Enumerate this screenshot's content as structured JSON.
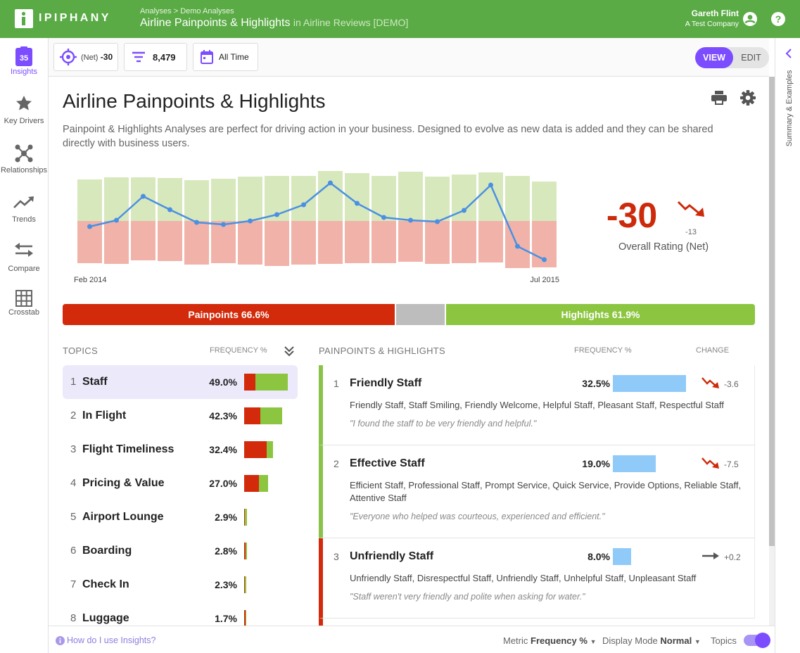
{
  "header": {
    "logo": "IPIPHANY",
    "breadcrumb": [
      "Analyses",
      "Demo Analyses"
    ],
    "separator": ">",
    "title": "Airline Painpoints & Highlights",
    "context": "in Airline Reviews [DEMO]",
    "user": "Gareth Flint",
    "company": "A Test Company"
  },
  "sidebar": {
    "badge": "35",
    "items": [
      "Insights",
      "Key Drivers",
      "Relationships",
      "Trends",
      "Compare",
      "Crosstab"
    ]
  },
  "toolbar": {
    "metric_prefix": "(Net)",
    "metric": "-30",
    "count": "8,479",
    "period": "All Time",
    "modes": [
      "VIEW",
      "EDIT"
    ]
  },
  "right_panel": "Summary & Examples",
  "analysis": {
    "title": "Airline Painpoints & Highlights",
    "description": "Painpoint & Highlights Analyses are perfect for driving action in your business. Designed to evolve as new data is added and they can be shared directly with business users.",
    "trend": {
      "type": "bar",
      "categories": [
        "Feb 2014",
        null,
        null,
        null,
        null,
        null,
        null,
        null,
        null,
        null,
        null,
        null,
        null,
        null,
        null,
        null,
        null,
        "Jul 2015"
      ],
      "ylim": [
        -70,
        75
      ],
      "highlights": {
        "color": "#d8e8bd",
        "values": [
          59,
          62,
          62,
          61,
          58,
          60,
          63,
          64,
          64,
          71,
          68,
          64,
          70,
          63,
          66,
          69,
          64,
          56
        ]
      },
      "painpoints": {
        "color": "#f1b3a9",
        "values": [
          -60,
          -61,
          -56,
          -57,
          -62,
          -60,
          -62,
          -64,
          -62,
          -61,
          -60,
          -60,
          -58,
          -61,
          -60,
          -59,
          -67,
          -66
        ]
      },
      "net": {
        "color": "#4a90e2",
        "values": [
          -8,
          1,
          35,
          16,
          -2,
          -5,
          0,
          9,
          23,
          54,
          25,
          5,
          1,
          -1,
          15,
          51,
          -36,
          -55
        ]
      }
    },
    "overall": {
      "value": "-30",
      "change": "-13",
      "label": "Overall Rating (Net)"
    },
    "split": {
      "painpoints": "Painpoints 66.6%",
      "highlights": "Highlights 61.9%"
    }
  },
  "topics": {
    "heading": "TOPICS",
    "frequency_heading": "FREQUENCY %",
    "items": [
      {
        "rank": "1",
        "name": "Staff",
        "frequency": "49.0%",
        "painpoints": 12.6,
        "highlights": 36.4
      },
      {
        "rank": "2",
        "name": "In Flight",
        "frequency": "42.3%",
        "painpoints": 18.2,
        "highlights": 24.1
      },
      {
        "rank": "3",
        "name": "Flight Timeliness",
        "frequency": "32.4%",
        "painpoints": 25.3,
        "highlights": 7.1
      },
      {
        "rank": "4",
        "name": "Pricing & Value",
        "frequency": "27.0%",
        "painpoints": 16.6,
        "highlights": 10.4
      },
      {
        "rank": "5",
        "name": "Airport Lounge",
        "frequency": "2.9%",
        "painpoints": 0.5,
        "highlights": 2.4
      },
      {
        "rank": "6",
        "name": "Boarding",
        "frequency": "2.8%",
        "painpoints": 1.4,
        "highlights": 1.4
      },
      {
        "rank": "7",
        "name": "Check In",
        "frequency": "2.3%",
        "painpoints": 0.8,
        "highlights": 1.5
      },
      {
        "rank": "8",
        "name": "Luggage",
        "frequency": "1.7%",
        "painpoints": 1.5,
        "highlights": 0.2
      }
    ]
  },
  "painpoints": {
    "heading": "PAINPOINTS & HIGHLIGHTS",
    "frequency_heading": "FREQUENCY %",
    "change_heading": "CHANGE",
    "items": [
      {
        "rank": "1",
        "name": "Friendly Staff",
        "color": "#8bc34a",
        "frequency": 32.5,
        "frequency_label": "32.5%",
        "change": "-3.6",
        "keywords": "Friendly Staff, Staff Smiling, Friendly Welcome, Helpful Staff, Pleasant Staff, Respectful Staff",
        "quote": "\"I found the staff to be very friendly and helpful.\""
      },
      {
        "rank": "2",
        "name": "Effective Staff",
        "color": "#8bc34a",
        "frequency": 19.0,
        "frequency_label": "19.0%",
        "change": "-7.5",
        "keywords": "Efficient Staff, Professional Staff, Prompt Service, Quick Service, Provide Options, Reliable Staff, Attentive Staff",
        "quote": "\"Everyone who helped was courteous, experienced and efficient.\""
      },
      {
        "rank": "3",
        "name": "Unfriendly Staff",
        "color": "#d22a0b",
        "frequency": 8.0,
        "frequency_label": "8.0%",
        "change": "+0.2",
        "keywords": "Unfriendly Staff, Disrespectful Staff, Unfriendly Staff, Unhelpful Staff, Unpleasant Staff",
        "quote": "\"Staff weren't very friendly and polite when asking for water.\""
      }
    ]
  },
  "footer": {
    "help": "How do I use Insights?",
    "metric_label": "Metric",
    "metric": "Frequency %",
    "display_label": "Display Mode",
    "display": "Normal",
    "topics_toggle": "Topics"
  }
}
